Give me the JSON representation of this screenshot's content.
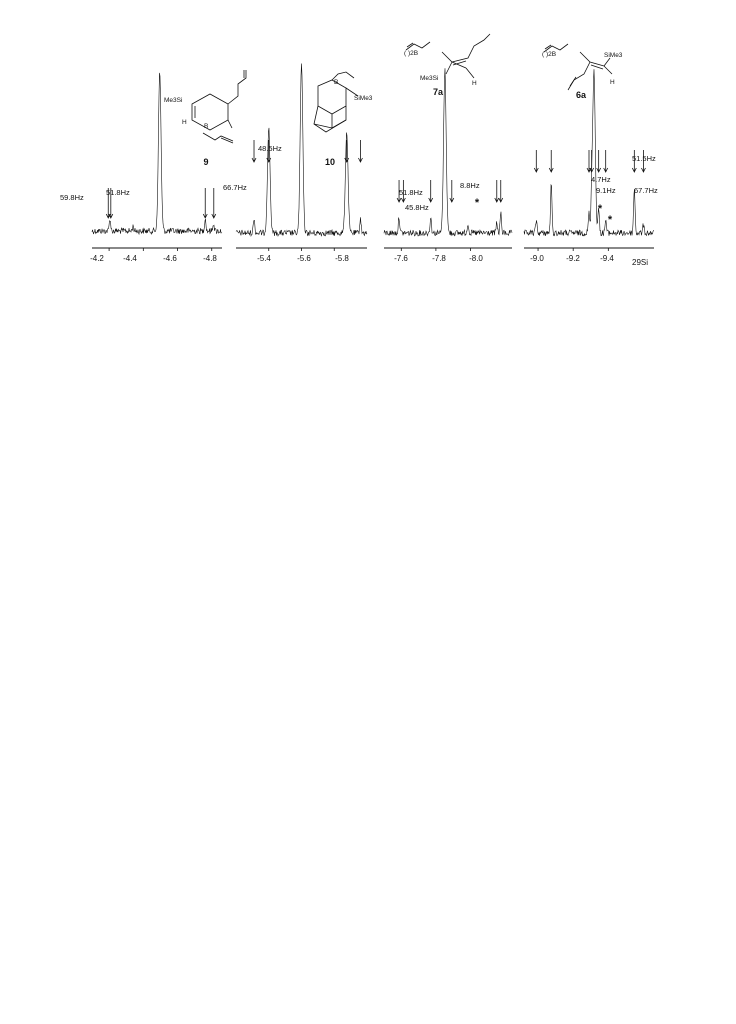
{
  "chart_data": [
    {
      "type": "line",
      "title": "",
      "xlabel": "",
      "ylabel": "",
      "x_reversed": true,
      "xlim": [
        -4.1,
        -4.86
      ],
      "x_ticks": [
        "-4.2",
        "-4.4",
        "-4.6",
        "-4.8"
      ],
      "compound_label": "9",
      "structure_substituents": [
        "Me3Si",
        "H",
        "B"
      ],
      "peaks": [
        {
          "x": -4.205,
          "height": 0.08
        },
        {
          "x": -4.34,
          "height": 0.03
        },
        {
          "x": -4.496,
          "height": 1.0
        },
        {
          "x": -4.762,
          "height": 0.08
        },
        {
          "x": -4.81,
          "height": 0.05
        }
      ],
      "arrows": [
        -4.195,
        -4.21,
        -4.762,
        -4.812
      ],
      "annotations": [
        {
          "text": "59.8Hz",
          "x": -4.195
        },
        {
          "text": "51.8Hz",
          "x": -4.21
        }
      ]
    },
    {
      "type": "line",
      "title": "",
      "xlabel": "",
      "ylabel": "",
      "x_reversed": true,
      "xlim": [
        -5.2,
        -6.0
      ],
      "x_ticks": [
        "-5.4",
        "-5.6",
        "-5.8"
      ],
      "compound_label": "10",
      "structure_substituents": [
        "B",
        "SiMe3"
      ],
      "peaks": [
        {
          "x": -5.31,
          "height": 0.09
        },
        {
          "x": -5.4,
          "height": 0.62
        },
        {
          "x": -5.6,
          "height": 1.0
        },
        {
          "x": -5.876,
          "height": 0.6
        },
        {
          "x": -5.96,
          "height": 0.09
        }
      ],
      "arrows": [
        -5.31,
        -5.4,
        -5.876,
        -5.96
      ],
      "annotations": [
        {
          "text": "48.5Hz",
          "x": -5.4
        },
        {
          "text": "66.7Hz",
          "x": -5.31
        }
      ]
    },
    {
      "type": "line",
      "title": "",
      "xlabel": "",
      "ylabel": "",
      "x_reversed": true,
      "xlim": [
        -7.5,
        -8.24
      ],
      "x_ticks": [
        "-7.6",
        "-7.8",
        "-8.0"
      ],
      "compound_label": "7a",
      "structure_substituents": [
        "( )2B",
        "Me3Si",
        "H"
      ],
      "peaks": [
        {
          "x": -7.587,
          "height": 0.1
        },
        {
          "x": -7.77,
          "height": 0.1
        },
        {
          "x": -7.852,
          "height": 1.0
        },
        {
          "x": -7.985,
          "height": 0.06
        },
        {
          "x": -8.152,
          "height": 0.06
        },
        {
          "x": -8.175,
          "height": 0.12
        }
      ],
      "arrows": [
        -7.587,
        -7.612,
        -7.77,
        -7.892,
        -8.152,
        -8.175
      ],
      "annotations": [
        {
          "text": "51.8Hz",
          "x": -7.587
        },
        {
          "text": "45.8Hz",
          "x": -7.612
        },
        {
          "text": "8.8Hz",
          "x": -7.892
        },
        {
          "text": "*",
          "x": -7.985
        }
      ]
    },
    {
      "type": "line",
      "title": "",
      "xlabel": "",
      "ylabel": "",
      "x_reversed": true,
      "xlim": [
        -8.92,
        -9.66
      ],
      "x_ticks": [
        "-9.0",
        "-9.2",
        "-9.4"
      ],
      "x_unit": "29Si",
      "compound_label": "6a",
      "structure_substituents": [
        "( )2B",
        "SiMe3",
        "H"
      ],
      "peaks": [
        {
          "x": -8.99,
          "height": 0.08
        },
        {
          "x": -9.075,
          "height": 0.3
        },
        {
          "x": -9.29,
          "height": 0.12
        },
        {
          "x": -9.305,
          "height": 0.17
        },
        {
          "x": -9.318,
          "height": 1.0
        },
        {
          "x": -9.345,
          "height": 0.15
        },
        {
          "x": -9.385,
          "height": 0.08
        },
        {
          "x": -9.548,
          "height": 0.28
        },
        {
          "x": -9.6,
          "height": 0.05
        }
      ],
      "arrows": [
        -8.99,
        -9.075,
        -9.29,
        -9.305,
        -9.345,
        -9.385,
        -9.548,
        -9.6
      ],
      "annotations": [
        {
          "text": "4.7Hz",
          "x": -9.345
        },
        {
          "text": "9.1Hz",
          "x": -9.385
        },
        {
          "text": "51.5Hz",
          "x": -9.548
        },
        {
          "text": "67.7Hz",
          "x": -9.6
        },
        {
          "text": "*",
          "x": -9.41
        },
        {
          "text": "*",
          "x": -9.45
        }
      ]
    }
  ]
}
